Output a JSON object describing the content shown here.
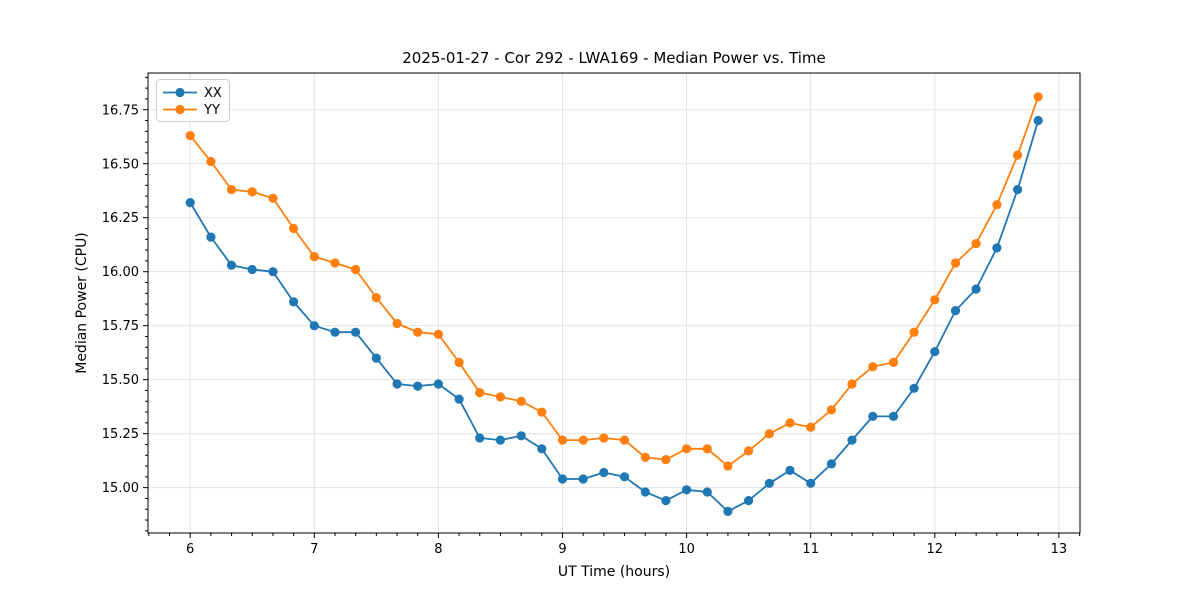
{
  "chart_data": {
    "type": "line",
    "title": "2025-01-27 - Cor 292 - LWA169 - Median Power vs. Time",
    "xlabel": "UT Time (hours)",
    "ylabel": "Median Power (CPU)",
    "x": [
      6.0,
      6.167,
      6.333,
      6.5,
      6.667,
      6.833,
      7.0,
      7.167,
      7.333,
      7.5,
      7.667,
      7.833,
      8.0,
      8.167,
      8.333,
      8.5,
      8.667,
      8.833,
      9.0,
      9.167,
      9.333,
      9.5,
      9.667,
      9.833,
      10.0,
      10.167,
      10.333,
      10.5,
      10.667,
      10.833,
      11.0,
      11.167,
      11.333,
      11.5,
      11.667,
      11.833,
      12.0,
      12.167,
      12.333,
      12.5,
      12.667,
      12.833
    ],
    "series": [
      {
        "name": "XX",
        "color": "#1f77b4",
        "values": [
          16.32,
          16.16,
          16.03,
          16.01,
          16.0,
          15.86,
          15.75,
          15.72,
          15.72,
          15.6,
          15.48,
          15.47,
          15.48,
          15.41,
          15.23,
          15.22,
          15.24,
          15.18,
          15.04,
          15.04,
          15.07,
          15.05,
          14.98,
          14.94,
          14.99,
          14.98,
          14.89,
          14.94,
          15.02,
          15.08,
          15.02,
          15.11,
          15.22,
          15.33,
          15.33,
          15.46,
          15.63,
          15.82,
          15.92,
          16.11,
          16.38,
          16.7
        ]
      },
      {
        "name": "YY",
        "color": "#ff7f0e",
        "values": [
          16.63,
          16.51,
          16.38,
          16.37,
          16.34,
          16.2,
          16.07,
          16.04,
          16.01,
          15.88,
          15.76,
          15.72,
          15.71,
          15.58,
          15.44,
          15.42,
          15.4,
          15.35,
          15.22,
          15.22,
          15.23,
          15.22,
          15.14,
          15.13,
          15.18,
          15.18,
          15.1,
          15.17,
          15.25,
          15.3,
          15.28,
          15.36,
          15.48,
          15.56,
          15.58,
          15.72,
          15.87,
          16.04,
          16.13,
          16.31,
          16.54,
          16.81
        ]
      }
    ],
    "xlim": [
      5.66,
      13.17
    ],
    "ylim": [
      14.79,
      16.92
    ],
    "x_major_ticks": [
      6,
      7,
      8,
      9,
      10,
      11,
      12,
      13
    ],
    "x_tick_labels": [
      "6",
      "7",
      "8",
      "9",
      "10",
      "11",
      "12",
      "13"
    ],
    "y_major_ticks": [
      15.0,
      15.25,
      15.5,
      15.75,
      16.0,
      16.25,
      16.5,
      16.75
    ],
    "y_tick_labels": [
      "15.00",
      "15.25",
      "15.50",
      "15.75",
      "16.00",
      "16.25",
      "16.50",
      "16.75"
    ],
    "x_minor_divisions": 6,
    "y_minor_step": 0.05,
    "grid": "major",
    "grid_color": "#e3e3e3",
    "axis_color": "#000000",
    "legend_position": "upper-left",
    "marker": "circle",
    "background": "#ffffff"
  }
}
